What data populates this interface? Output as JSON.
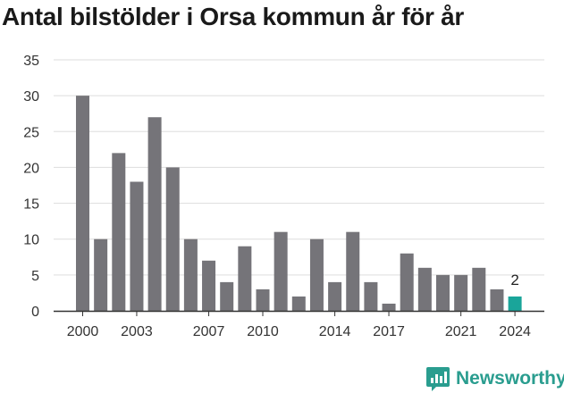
{
  "chart_data": {
    "type": "bar",
    "title": "Antal bilstölder i Orsa kommun år för år",
    "categories": [
      "2000",
      "2001",
      "2002",
      "2003",
      "2004",
      "2005",
      "2006",
      "2007",
      "2008",
      "2009",
      "2010",
      "2011",
      "2012",
      "2013",
      "2014",
      "2015",
      "2016",
      "2017",
      "2018",
      "2019",
      "2020",
      "2021",
      "2022",
      "2023",
      "2024"
    ],
    "values": [
      30,
      10,
      22,
      18,
      27,
      20,
      10,
      7,
      4,
      9,
      3,
      11,
      2,
      10,
      4,
      11,
      4,
      1,
      8,
      6,
      5,
      5,
      6,
      3,
      2
    ],
    "x_tick_labels": [
      "2000",
      "2003",
      "2007",
      "2010",
      "2014",
      "2017",
      "2021",
      "2024"
    ],
    "y_ticks": [
      0,
      5,
      10,
      15,
      20,
      25,
      30,
      35
    ],
    "ylim": [
      0,
      35
    ],
    "xlabel": "",
    "ylabel": "",
    "grid": true,
    "highlight": {
      "category": "2024",
      "label": "2"
    },
    "colors": {
      "bar": "#757479",
      "highlight": "#1aa59a",
      "grid": "#dddddd",
      "axis": "#333333"
    }
  },
  "branding": {
    "name": "Newsworthy",
    "icon": "newsworthy-logo-icon",
    "color": "#2a9d8f"
  }
}
